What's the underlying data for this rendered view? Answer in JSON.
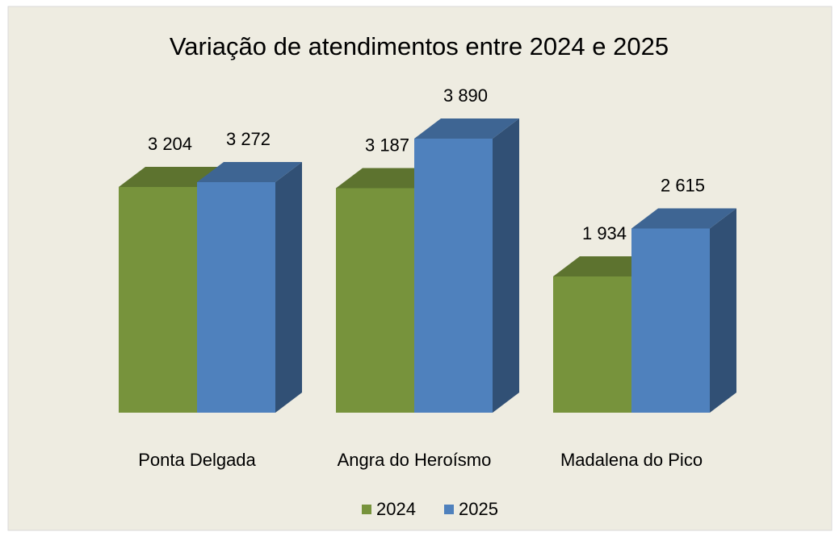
{
  "chart_data": {
    "type": "bar3d",
    "title": "Variação de atendimentos entre 2024 e 2025",
    "categories": [
      "Ponta Delgada",
      "Angra do Heroísmo",
      "Madalena do Pico"
    ],
    "series": [
      {
        "name": "2024",
        "color": "#77933c",
        "values": [
          3204,
          3187,
          1934
        ],
        "value_labels": [
          "3 204",
          "3 187",
          "1 934"
        ]
      },
      {
        "name": "2025",
        "color": "#4f81bd",
        "values": [
          3272,
          3890,
          2615
        ],
        "value_labels": [
          "3 272",
          "3 890",
          "2 615"
        ]
      }
    ],
    "legend": "bottom"
  }
}
